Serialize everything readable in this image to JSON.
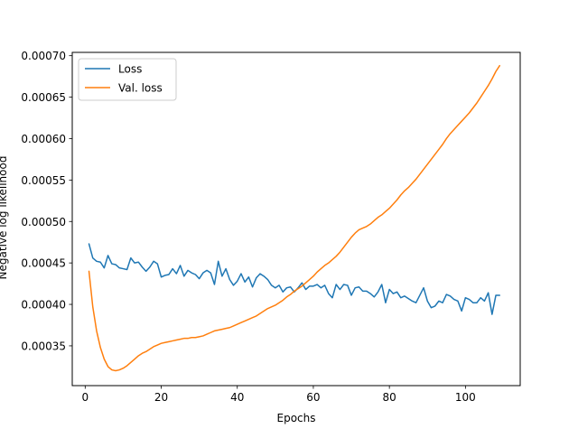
{
  "chart_data": {
    "type": "line",
    "xlabel": "Epochs",
    "ylabel": "Negative log likelihood",
    "xlim": [
      -3.4,
      114.4
    ],
    "ylim": [
      0.000302,
      0.000704
    ],
    "xticks": [
      0,
      20,
      40,
      60,
      80,
      100
    ],
    "xtick_labels": [
      "0",
      "20",
      "40",
      "60",
      "80",
      "100"
    ],
    "yticks": [
      0.00035,
      0.0004,
      0.00045,
      0.0005,
      0.00055,
      0.0006,
      0.00065,
      0.0007
    ],
    "ytick_labels": [
      "0.00035",
      "0.00040",
      "0.00045",
      "0.00050",
      "0.00055",
      "0.00060",
      "0.00065",
      "0.00070"
    ],
    "grid": false,
    "legend_position": "top-left",
    "x": [
      1,
      2,
      3,
      4,
      5,
      6,
      7,
      8,
      9,
      10,
      11,
      12,
      13,
      14,
      15,
      16,
      17,
      18,
      19,
      20,
      21,
      22,
      23,
      24,
      25,
      26,
      27,
      28,
      29,
      30,
      31,
      32,
      33,
      34,
      35,
      36,
      37,
      38,
      39,
      40,
      41,
      42,
      43,
      44,
      45,
      46,
      47,
      48,
      49,
      50,
      51,
      52,
      53,
      54,
      55,
      56,
      57,
      58,
      59,
      60,
      61,
      62,
      63,
      64,
      65,
      66,
      67,
      68,
      69,
      70,
      71,
      72,
      73,
      74,
      75,
      76,
      77,
      78,
      79,
      80,
      81,
      82,
      83,
      84,
      85,
      86,
      87,
      88,
      89,
      90,
      91,
      92,
      93,
      94,
      95,
      96,
      97,
      98,
      99,
      100,
      101,
      102,
      103,
      104,
      105,
      106,
      107,
      108,
      109
    ],
    "series": [
      {
        "name": "Loss",
        "color": "#1f77b4",
        "values": [
          0.000473,
          0.000456,
          0.000452,
          0.000451,
          0.000444,
          0.000459,
          0.000449,
          0.000448,
          0.000444,
          0.000443,
          0.000442,
          0.000456,
          0.00045,
          0.000451,
          0.000445,
          0.00044,
          0.000445,
          0.000452,
          0.000449,
          0.000433,
          0.000435,
          0.000436,
          0.000443,
          0.000437,
          0.000447,
          0.000434,
          0.000441,
          0.000438,
          0.000436,
          0.000431,
          0.000438,
          0.000441,
          0.000438,
          0.000424,
          0.000452,
          0.000434,
          0.000443,
          0.00043,
          0.000423,
          0.000428,
          0.000437,
          0.000427,
          0.000433,
          0.000421,
          0.000432,
          0.000437,
          0.000434,
          0.00043,
          0.000423,
          0.00042,
          0.000423,
          0.000415,
          0.00042,
          0.000421,
          0.000415,
          0.00042,
          0.000426,
          0.000418,
          0.000422,
          0.000422,
          0.000424,
          0.00042,
          0.000423,
          0.000413,
          0.000408,
          0.000424,
          0.000418,
          0.000424,
          0.000423,
          0.000411,
          0.00042,
          0.000421,
          0.000416,
          0.000416,
          0.000413,
          0.000409,
          0.000415,
          0.000424,
          0.000402,
          0.000418,
          0.000413,
          0.000415,
          0.000408,
          0.00041,
          0.000407,
          0.000404,
          0.000402,
          0.000411,
          0.00042,
          0.000404,
          0.000396,
          0.000398,
          0.000404,
          0.000402,
          0.000412,
          0.00041,
          0.000406,
          0.000404,
          0.000392,
          0.000408,
          0.000406,
          0.000402,
          0.000402,
          0.000408,
          0.000404,
          0.000414,
          0.000388,
          0.000411,
          0.000411
        ]
      },
      {
        "name": "Val. loss",
        "color": "#ff7f0e",
        "values": [
          0.00044,
          0.000397,
          0.000368,
          0.000348,
          0.000334,
          0.000325,
          0.000321,
          0.00032,
          0.000321,
          0.000323,
          0.000326,
          0.00033,
          0.000334,
          0.000338,
          0.000341,
          0.000343,
          0.000346,
          0.000349,
          0.000351,
          0.000353,
          0.000354,
          0.000355,
          0.000356,
          0.000357,
          0.000358,
          0.000359,
          0.000359,
          0.00036,
          0.00036,
          0.000361,
          0.000362,
          0.000364,
          0.000366,
          0.000368,
          0.000369,
          0.00037,
          0.000371,
          0.000372,
          0.000374,
          0.000376,
          0.000378,
          0.00038,
          0.000382,
          0.000384,
          0.000386,
          0.000389,
          0.000392,
          0.000395,
          0.000397,
          0.000399,
          0.000402,
          0.000405,
          0.000409,
          0.000412,
          0.000416,
          0.000419,
          0.000422,
          0.000426,
          0.00043,
          0.000434,
          0.000439,
          0.000443,
          0.000447,
          0.00045,
          0.000454,
          0.000458,
          0.000463,
          0.000469,
          0.000475,
          0.000481,
          0.000486,
          0.00049,
          0.000492,
          0.000494,
          0.000497,
          0.000501,
          0.000505,
          0.000508,
          0.000512,
          0.000516,
          0.000521,
          0.000526,
          0.000532,
          0.000537,
          0.000541,
          0.000546,
          0.000551,
          0.000557,
          0.000563,
          0.000569,
          0.000575,
          0.000581,
          0.000587,
          0.000593,
          0.0006,
          0.000606,
          0.000611,
          0.000616,
          0.000621,
          0.000626,
          0.000631,
          0.000637,
          0.000643,
          0.00065,
          0.000657,
          0.000664,
          0.000672,
          0.000681,
          0.000688
        ]
      }
    ]
  }
}
